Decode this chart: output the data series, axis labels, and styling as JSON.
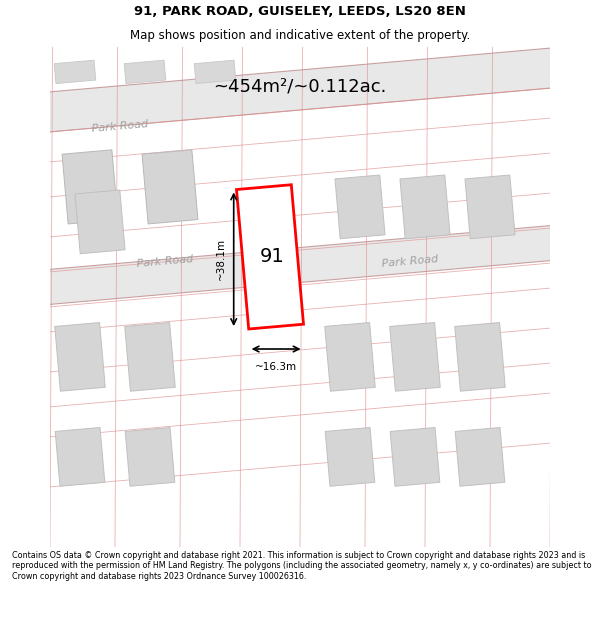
{
  "title_line1": "91, PARK ROAD, GUISELEY, LEEDS, LS20 8EN",
  "title_line2": "Map shows position and indicative extent of the property.",
  "area_text": "~454m²/~0.112ac.",
  "label_91": "91",
  "dim_width": "~16.3m",
  "dim_height": "~38.1m",
  "road_label_left": "Park Road",
  "road_label_right": "Park Road",
  "road_label_top": "Park Road",
  "footer_text": "Contains OS data © Crown copyright and database right 2021. This information is subject to Crown copyright and database rights 2023 and is reproduced with the permission of HM Land Registry. The polygons (including the associated geometry, namely x, y co-ordinates) are subject to Crown copyright and database rights 2023 Ordnance Survey 100026316.",
  "bg_color": "#f5f5f0",
  "map_bg": "#ffffff",
  "road_color": "#e8e8e8",
  "road_line_color": "#e0a0a0",
  "highlight_color": "#ff0000",
  "building_fill": "#d8d8d8",
  "building_edge": "#c0c0c0",
  "road_gray": "#c8c8c8"
}
